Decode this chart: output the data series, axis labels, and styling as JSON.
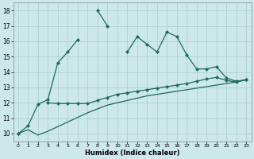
{
  "xlabel": "Humidex (Indice chaleur)",
  "x": [
    0,
    1,
    2,
    3,
    4,
    5,
    6,
    7,
    8,
    9,
    10,
    11,
    12,
    13,
    14,
    15,
    16,
    17,
    18,
    19,
    20,
    21,
    22,
    23
  ],
  "line1": [
    10.0,
    10.5,
    11.9,
    12.2,
    14.6,
    15.3,
    16.1,
    null,
    18.0,
    17.0,
    null,
    15.3,
    16.3,
    15.8,
    15.3,
    16.6,
    16.3,
    15.1,
    14.2,
    14.2,
    14.35,
    13.6,
    13.4,
    13.5
  ],
  "line2": [
    10.0,
    null,
    null,
    12.0,
    11.95,
    11.95,
    11.95,
    11.95,
    12.15,
    12.35,
    12.55,
    12.65,
    12.75,
    12.85,
    12.95,
    13.05,
    13.15,
    13.25,
    13.4,
    13.55,
    13.65,
    13.45,
    13.35,
    13.5
  ],
  "line3": [
    10.0,
    10.25,
    9.9,
    10.15,
    10.45,
    10.75,
    11.05,
    11.35,
    11.6,
    11.85,
    12.0,
    12.15,
    12.3,
    12.45,
    12.55,
    12.65,
    12.75,
    12.85,
    12.95,
    13.05,
    13.15,
    13.25,
    13.35,
    13.5
  ],
  "color": "#1a6b5a",
  "bg_color": "#cce8e8",
  "grid_color": "#aacccc",
  "ylim": [
    9.5,
    18.5
  ],
  "xlim": [
    -0.5,
    23.5
  ],
  "yticks": [
    10,
    11,
    12,
    13,
    14,
    15,
    16,
    17,
    18
  ],
  "marker": "D",
  "markersize": 2.5
}
